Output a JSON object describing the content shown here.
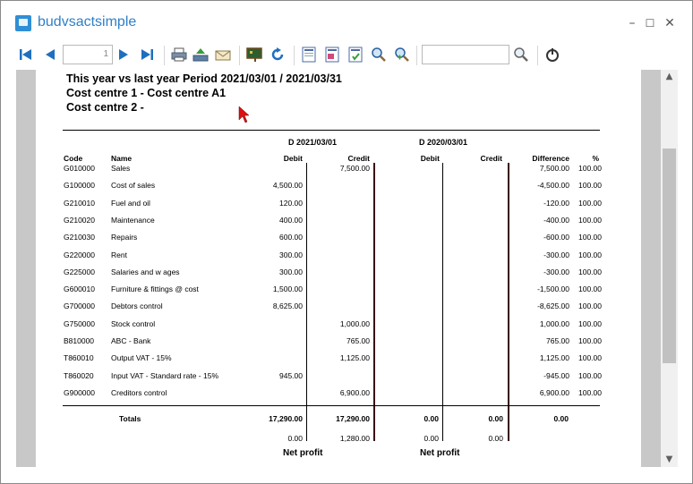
{
  "window": {
    "title": "budvsactsimple",
    "minimize": "–",
    "maximize": "☐",
    "close": "✕"
  },
  "toolbar": {
    "page_value": "1"
  },
  "report": {
    "header_line1": "This year vs last year Period  2021/03/01 / 2021/03/31",
    "header_line2": "Cost centre 1 - Cost centre A1",
    "header_line3": "Cost centre 2 -",
    "group1_label": "D 2021/03/01",
    "group2_label": "D 2020/03/01",
    "columns": {
      "code": "Code",
      "name": "Name",
      "debit1": "Debit",
      "credit1": "Credit",
      "debit2": "Debit",
      "credit2": "Credit",
      "difference": "Difference",
      "pct": "%"
    },
    "rows": [
      {
        "code": "G010000",
        "name": "Sales",
        "debit1": "",
        "credit1": "7,500.00",
        "diff": "7,500.00",
        "pct": "100.00"
      },
      {
        "code": "G100000",
        "name": "Cost of sales",
        "debit1": "4,500.00",
        "credit1": "",
        "diff": "-4,500.00",
        "pct": "100.00"
      },
      {
        "code": "G210010",
        "name": "Fuel and oil",
        "debit1": "120.00",
        "credit1": "",
        "diff": "-120.00",
        "pct": "100.00"
      },
      {
        "code": "G210020",
        "name": "Maintenance",
        "debit1": "400.00",
        "credit1": "",
        "diff": "-400.00",
        "pct": "100.00"
      },
      {
        "code": "G210030",
        "name": "Repairs",
        "debit1": "600.00",
        "credit1": "",
        "diff": "-600.00",
        "pct": "100.00"
      },
      {
        "code": "G220000",
        "name": "Rent",
        "debit1": "300.00",
        "credit1": "",
        "diff": "-300.00",
        "pct": "100.00"
      },
      {
        "code": "G225000",
        "name": "Salaries and w ages",
        "debit1": "300.00",
        "credit1": "",
        "diff": "-300.00",
        "pct": "100.00"
      },
      {
        "code": "G600010",
        "name": "Furniture & fittings @ cost",
        "debit1": "1,500.00",
        "credit1": "",
        "diff": "-1,500.00",
        "pct": "100.00"
      },
      {
        "code": "G700000",
        "name": "Debtors control",
        "debit1": "8,625.00",
        "credit1": "",
        "diff": "-8,625.00",
        "pct": "100.00"
      },
      {
        "code": "G750000",
        "name": "Stock control",
        "debit1": "",
        "credit1": "1,000.00",
        "diff": "1,000.00",
        "pct": "100.00"
      },
      {
        "code": "B810000",
        "name": "ABC - Bank",
        "debit1": "",
        "credit1": "765.00",
        "diff": "765.00",
        "pct": "100.00"
      },
      {
        "code": "T860010",
        "name": "Output VAT - 15%",
        "debit1": "",
        "credit1": "1,125.00",
        "diff": "1,125.00",
        "pct": "100.00"
      },
      {
        "code": "T860020",
        "name": "Input VAT - Standard rate - 15%",
        "debit1": "945.00",
        "credit1": "",
        "diff": "-945.00",
        "pct": "100.00"
      },
      {
        "code": "G900000",
        "name": "Creditors control",
        "debit1": "",
        "credit1": "6,900.00",
        "diff": "6,900.00",
        "pct": "100.00"
      }
    ],
    "totals": {
      "label": "Totals",
      "debit1": "17,290.00",
      "credit1": "17,290.00",
      "debit2": "0.00",
      "credit2": "0.00",
      "diff": "0.00"
    },
    "profit_row": {
      "debit1": "0.00",
      "credit1": "1,280.00",
      "debit2": "0.00",
      "credit2": "0.00"
    },
    "net_profit1": "Net profit",
    "net_profit2": "Net profit"
  }
}
